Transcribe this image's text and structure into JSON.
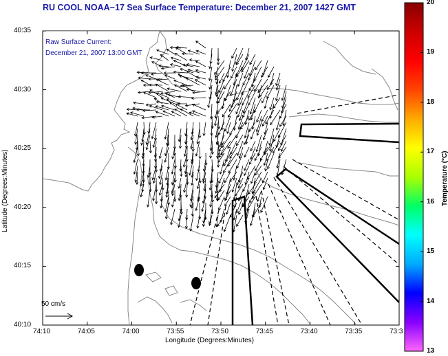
{
  "title": "RU COOL  NOAA−17  Sea Surface Temperature:  December 21, 2007 1427 GMT",
  "current_legend": {
    "line1": "Raw Surface Current:",
    "line2": "December 21, 2007 13:00 GMT"
  },
  "scale_label": "50 cm/s",
  "axes": {
    "xlabel": "Longitude (Degrees:Minutes)",
    "ylabel": "Latitude (Degrees:Minutes)",
    "x_ticks": [
      "74:10",
      "74:05",
      "74:00",
      "73:55",
      "73:50",
      "73:45",
      "73:40",
      "73:35",
      "73:3"
    ],
    "y_ticks": [
      "40:35",
      "40:30",
      "40:25",
      "40:20",
      "40:15",
      "40:10"
    ]
  },
  "colorbar": {
    "label": "Temperature (°C)",
    "ticks": [
      "20",
      "19",
      "18",
      "17",
      "16",
      "15",
      "14",
      "13"
    ],
    "range": [
      13,
      20
    ],
    "colors": [
      "#ff66ff",
      "#8800ff",
      "#0000ff",
      "#00aaff",
      "#00ffff",
      "#00ff66",
      "#aaff00",
      "#ffff00",
      "#ffaa00",
      "#ff4400",
      "#ff0000",
      "#cc0000",
      "#880000"
    ]
  },
  "colors": {
    "title": "#1a1aa8",
    "coast": "#888888",
    "vectors": "#000000"
  }
}
